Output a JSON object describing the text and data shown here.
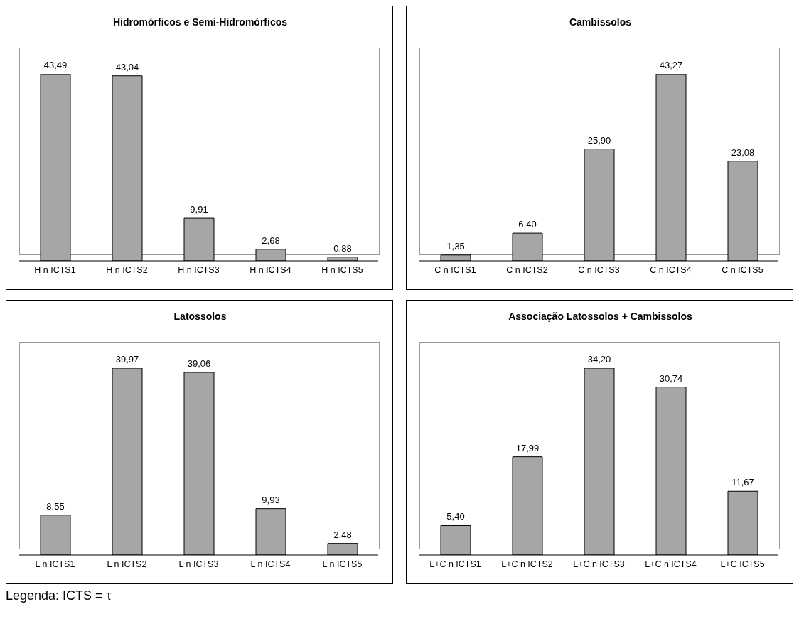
{
  "chart_data": [
    {
      "type": "bar",
      "title": "Hidromórficos e Semi-Hidromórficos",
      "categories": [
        "H n ICTS1",
        "H n ICTS2",
        "H n ICTS3",
        "H n ICTS4",
        "H n ICTS5"
      ],
      "values": [
        43.49,
        43.04,
        9.91,
        2.68,
        0.88
      ],
      "color": "#a6a6a6",
      "data_labels": true,
      "value_labels": [
        "43,49",
        "43,04",
        "9,91",
        "2,68",
        "0,88"
      ]
    },
    {
      "type": "bar",
      "title": "Cambissolos",
      "categories": [
        "C n ICTS1",
        "C n ICTS2",
        "C n ICTS3",
        "C n ICTS4",
        "C n ICTS5"
      ],
      "values": [
        1.35,
        6.4,
        25.9,
        43.27,
        23.08
      ],
      "color": "#a6a6a6",
      "data_labels": true,
      "value_labels": [
        "1,35",
        "6,40",
        "25,90",
        "43,27",
        "23,08"
      ]
    },
    {
      "type": "bar",
      "title": "Latossolos",
      "categories": [
        "L n ICTS1",
        "L n ICTS2",
        "L n ICTS3",
        "L n ICTS4",
        "L n ICTS5"
      ],
      "values": [
        8.55,
        39.97,
        39.06,
        9.93,
        2.48
      ],
      "color": "#a6a6a6",
      "data_labels": true,
      "value_labels": [
        "8,55",
        "39,97",
        "39,06",
        "9,93",
        "2,48"
      ],
      "annotations": [
        "Legenda: ICTS = τ"
      ]
    },
    {
      "type": "bar",
      "title": "Associação Latossolos + Cambissolos",
      "categories": [
        "L+C n ICTS1",
        "L+C n ICTS2",
        "L+C n ICTS3",
        "L+C n ICTS4",
        "L+C ICTS5"
      ],
      "values": [
        5.4,
        17.99,
        34.2,
        30.74,
        11.67
      ],
      "color": "#a6a6a6",
      "data_labels": true,
      "value_labels": [
        "5,40",
        "17,99",
        "34,20",
        "30,74",
        "11,67"
      ]
    }
  ]
}
